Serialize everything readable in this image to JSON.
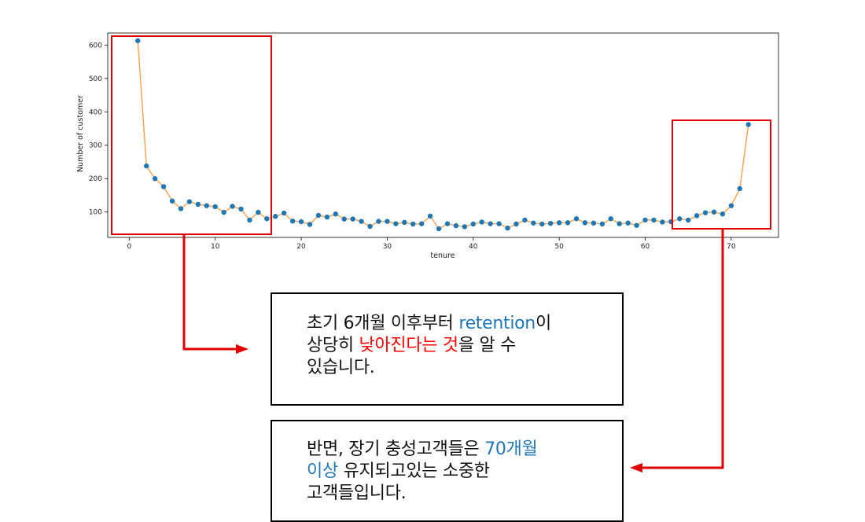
{
  "chart_data": {
    "type": "line",
    "xlabel": "tenure",
    "ylabel": "Number of customer",
    "xlim": [
      -2.5,
      75.5
    ],
    "ylim": [
      24,
      636
    ],
    "xticks": [
      0,
      10,
      20,
      30,
      40,
      50,
      60,
      70
    ],
    "yticks": [
      100,
      200,
      300,
      400,
      500,
      600
    ],
    "grid": false,
    "line_color": "#ff9f4a",
    "marker_color": "#1f77b4",
    "series": [
      {
        "x": [
          1,
          2,
          3,
          4,
          5,
          6,
          7,
          8,
          9,
          10,
          11,
          12,
          13,
          14,
          15,
          16,
          17,
          18,
          19,
          20,
          21,
          22,
          23,
          24,
          25,
          26,
          27,
          28,
          29,
          30,
          31,
          32,
          33,
          34,
          35,
          36,
          37,
          38,
          39,
          40,
          41,
          42,
          43,
          44,
          45,
          46,
          47,
          48,
          49,
          50,
          51,
          52,
          53,
          54,
          55,
          56,
          57,
          58,
          59,
          60,
          61,
          62,
          63,
          64,
          65,
          66,
          67,
          68,
          69,
          70,
          71,
          72
        ],
        "values": [
          613,
          238,
          200,
          176,
          133,
          110,
          131,
          123,
          119,
          116,
          99,
          117,
          109,
          76,
          99,
          80,
          87,
          97,
          73,
          71,
          63,
          90,
          85,
          94,
          79,
          79,
          72,
          57,
          72,
          72,
          65,
          69,
          64,
          65,
          88,
          50,
          65,
          59,
          56,
          64,
          70,
          65,
          65,
          52,
          64,
          76,
          67,
          64,
          66,
          68,
          68,
          80,
          68,
          67,
          64,
          80,
          65,
          67,
          60,
          76,
          76,
          70,
          71,
          80,
          76,
          89,
          98,
          100,
          94,
          119,
          170,
          362
        ]
      }
    ]
  },
  "annotations": {
    "box1": {
      "line1_a": "초기 6개월 이후부터 ",
      "line1_b": "retention",
      "line1_c": "이",
      "line2_a": "상당히 ",
      "line2_b": "낮아진다는 것",
      "line2_c": "을 알 수",
      "line3": "있습니다."
    },
    "box2": {
      "line1_a": "반면, 장기 충성고객들은 ",
      "line1_b": "70개월",
      "line2_a": "이상",
      "line2_b": " 유지되고있는 소중한",
      "line3": "고객들입니다."
    },
    "colors": {
      "highlight": "#e00000",
      "emphasis_blue": "#1f77b4",
      "emphasis_red": "#ff0000"
    }
  }
}
